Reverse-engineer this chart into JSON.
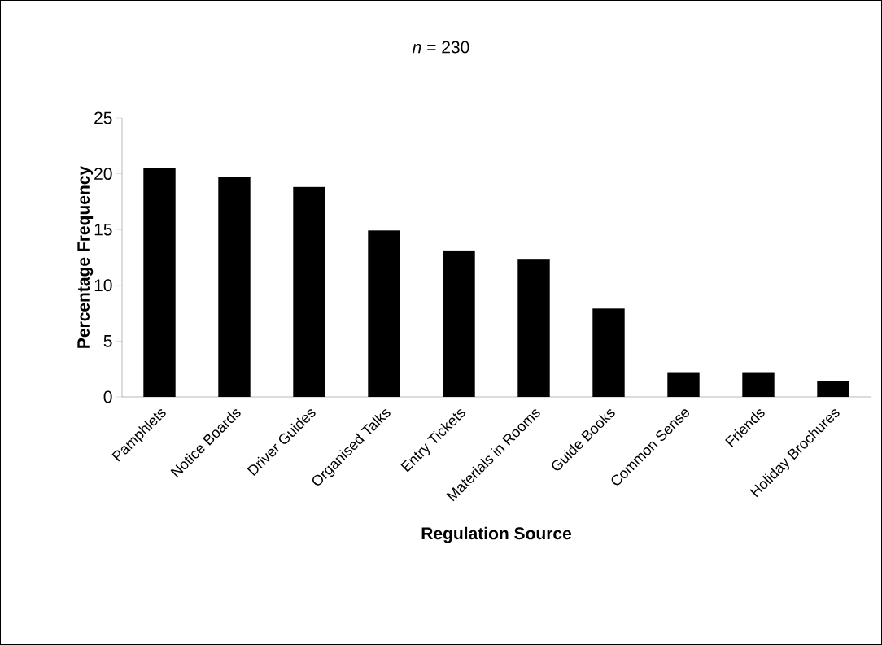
{
  "chart_data": {
    "type": "bar",
    "title": "*n* = 230",
    "xlabel": "Regulation Source",
    "ylabel": "Percentage Frequency",
    "categories": [
      "Pamphlets",
      "Notice Boards",
      "Driver Guides",
      "Organised Talks",
      "Entry Tickets",
      "Materials in Rooms",
      "Guide Books",
      "Common Sense",
      "Friends",
      "Holiday Brochures"
    ],
    "values": [
      20.5,
      19.7,
      18.8,
      14.9,
      13.1,
      12.3,
      7.9,
      2.2,
      2.2,
      1.4
    ],
    "color": "#000000",
    "ylim": [
      0,
      25
    ],
    "yticks": [
      0,
      5,
      10,
      15,
      20,
      25
    ],
    "grid": false
  }
}
